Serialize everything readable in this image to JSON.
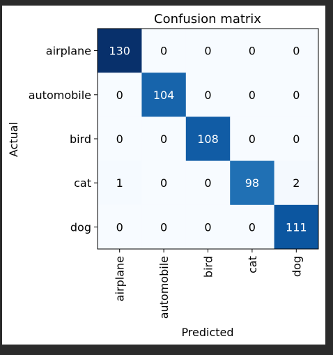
{
  "chart_data": {
    "type": "heatmap",
    "title": "Confusion matrix",
    "xlabel": "Predicted",
    "ylabel": "Actual",
    "row_labels": [
      "airplane",
      "automobile",
      "bird",
      "cat",
      "dog"
    ],
    "col_labels": [
      "airplane",
      "automobile",
      "bird",
      "cat",
      "dog"
    ],
    "values": [
      [
        130,
        0,
        0,
        0,
        0
      ],
      [
        0,
        104,
        0,
        0,
        0
      ],
      [
        0,
        0,
        108,
        0,
        0
      ],
      [
        1,
        0,
        0,
        98,
        2
      ],
      [
        0,
        0,
        0,
        0,
        111
      ]
    ],
    "colormap": "Blues",
    "colors": {
      "low": "#f7fbff",
      "high": "#08306b",
      "text_dark": "#000000",
      "text_light": "#ffffff"
    }
  }
}
